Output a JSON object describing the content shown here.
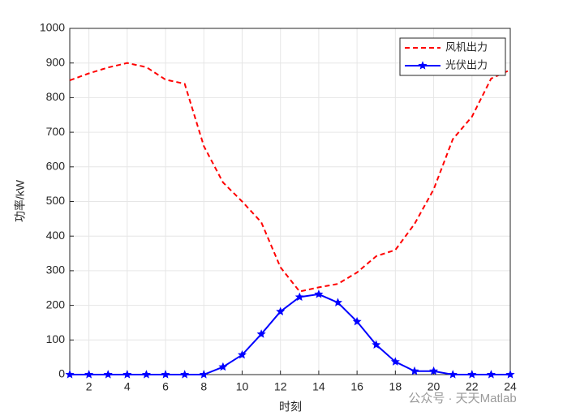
{
  "chart_data": {
    "type": "line",
    "x": [
      1,
      2,
      3,
      4,
      5,
      6,
      7,
      8,
      9,
      10,
      11,
      12,
      13,
      14,
      15,
      16,
      17,
      18,
      19,
      20,
      21,
      22,
      23,
      24
    ],
    "series": [
      {
        "name": "风机出力",
        "color": "#ff0000",
        "dash": true,
        "marker": false,
        "values": [
          850,
          870,
          887,
          900,
          888,
          852,
          840,
          660,
          555,
          500,
          440,
          310,
          240,
          252,
          262,
          295,
          342,
          360,
          435,
          535,
          680,
          745,
          855,
          880
        ]
      },
      {
        "name": "光伏出力",
        "color": "#0000ff",
        "dash": false,
        "marker": true,
        "values": [
          0,
          0,
          0,
          0,
          0,
          0,
          0,
          0,
          22,
          57,
          117,
          182,
          224,
          232,
          208,
          153,
          86,
          37,
          10,
          10,
          0,
          0,
          0,
          0
        ]
      }
    ],
    "xlabel": "时刻",
    "ylabel": "功率/kW",
    "xlim": [
      1,
      24
    ],
    "xticks": [
      2,
      4,
      6,
      8,
      10,
      12,
      14,
      16,
      18,
      20,
      22,
      24
    ],
    "ylim": [
      0,
      1000
    ],
    "yticks": [
      0,
      100,
      200,
      300,
      400,
      500,
      600,
      700,
      800,
      900,
      1000
    ],
    "grid": true,
    "legend": "northeast",
    "watermark": "公众号 · 天天Matlab"
  }
}
